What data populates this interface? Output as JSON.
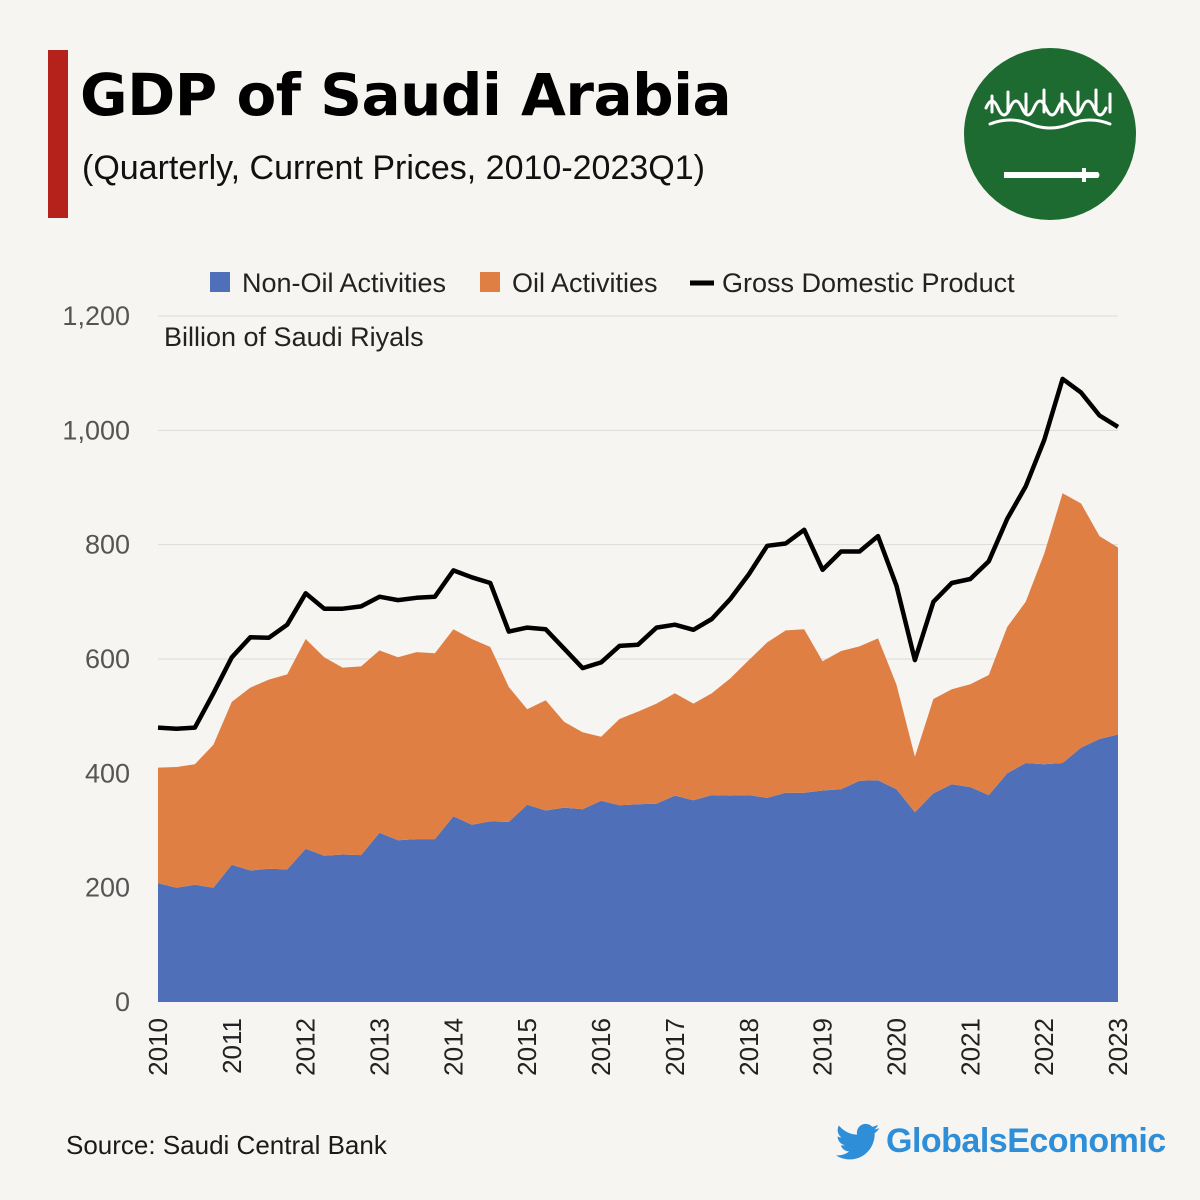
{
  "header": {
    "title": "GDP of Saudi Arabia",
    "subtitle": "(Quarterly, Current Prices, 2010-2023Q1)"
  },
  "flag": {
    "name": "saudi-flag",
    "color": "#1e6b32"
  },
  "footer": {
    "source": "Source: Saudi Central Bank",
    "brand": "GlobalsEconomic",
    "brand_icon": "twitter-bird-icon",
    "brand_color": "#2f8ed8"
  },
  "chart_data": {
    "type": "area",
    "unit_label": "Billion of Saudi Riyals",
    "ylim": [
      0,
      1200
    ],
    "yticks": [
      0,
      200,
      400,
      600,
      800,
      1000,
      1200
    ],
    "ytick_labels": [
      "0",
      "200",
      "400",
      "600",
      "800",
      "1,000",
      "1,200"
    ],
    "xlabels": [
      "2010",
      "2011",
      "2012",
      "2013",
      "2014",
      "2015",
      "2016",
      "2017",
      "2018",
      "2019",
      "2020",
      "2021",
      "2022",
      "2023"
    ],
    "x_first_year": 2010,
    "grid": true,
    "legend_position": "top",
    "series": [
      {
        "name": "Non-Oil Activities",
        "kind": "area",
        "color": "#4f70b8",
        "values": [
          208,
          200,
          205,
          200,
          240,
          230,
          233,
          232,
          268,
          256,
          258,
          257,
          296,
          283,
          285,
          285,
          325,
          310,
          316,
          315,
          345,
          335,
          340,
          337,
          352,
          344,
          346,
          347,
          361,
          353,
          362,
          361,
          362,
          357,
          366,
          366,
          370,
          372,
          387,
          388,
          372,
          332,
          365,
          381,
          376,
          362,
          400,
          418,
          416,
          418,
          445,
          460,
          468
        ]
      },
      {
        "name": "Oil Activities",
        "kind": "area",
        "color": "#df7f44",
        "values": [
          202,
          211,
          211,
          250,
          285,
          320,
          331,
          341,
          367,
          347,
          327,
          330,
          319,
          320,
          327,
          325,
          327,
          325,
          305,
          236,
          167,
          193,
          150,
          135,
          112,
          151,
          162,
          175,
          179,
          169,
          178,
          205,
          236,
          272,
          284,
          286,
          226,
          242,
          235,
          248,
          183,
          97,
          165,
          166,
          180,
          210,
          256,
          282,
          368,
          472,
          427,
          355,
          327
        ]
      },
      {
        "name": "Gross Domestic Product",
        "kind": "line",
        "color": "#000000",
        "values": [
          480,
          478,
          480,
          540,
          603,
          638,
          637,
          660,
          715,
          688,
          688,
          692,
          709,
          703,
          707,
          709,
          755,
          743,
          733,
          648,
          655,
          652,
          618,
          584,
          594,
          623,
          625,
          655,
          660,
          651,
          670,
          705,
          748,
          798,
          802,
          826,
          756,
          788,
          788,
          815,
          728,
          598,
          700,
          733,
          740,
          771,
          845,
          902,
          983,
          1090,
          1066,
          1026,
          1006
        ]
      }
    ]
  }
}
